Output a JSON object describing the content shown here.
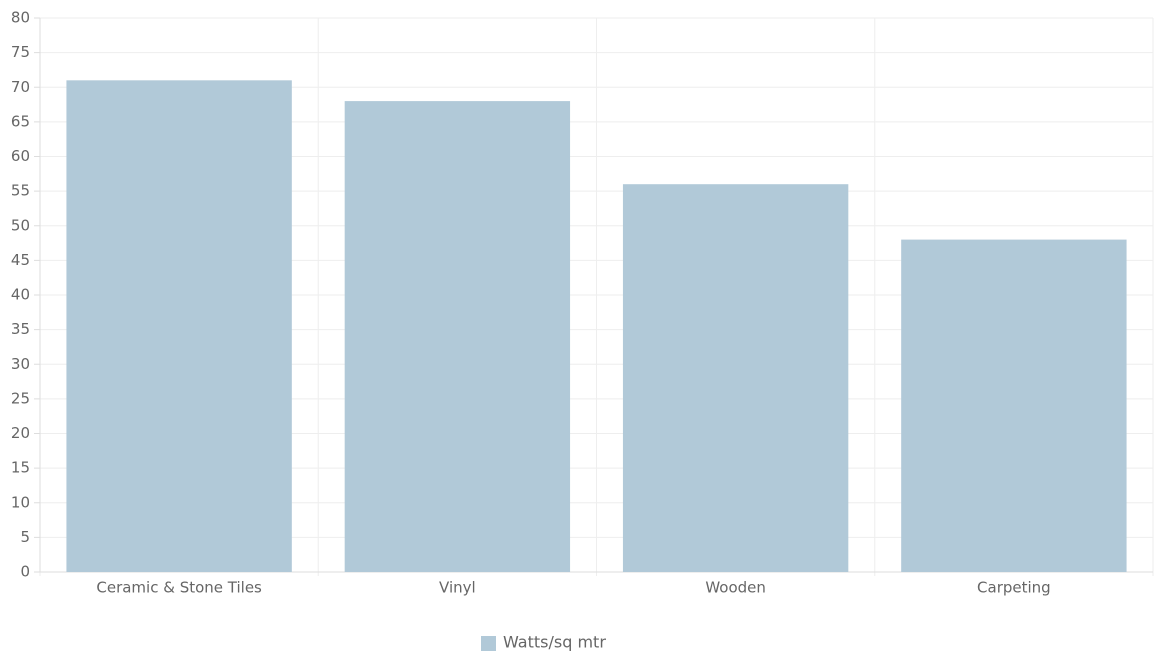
{
  "chart_data": {
    "type": "bar",
    "categories": [
      "Ceramic & Stone Tiles",
      "Vinyl",
      "Wooden",
      "Carpeting"
    ],
    "series": [
      {
        "name": "Watts/sq mtr",
        "color": "#b1c9d8",
        "values": [
          71,
          68,
          56,
          48
        ]
      }
    ],
    "ylim": [
      0,
      80
    ],
    "yticks": [
      0,
      5,
      10,
      15,
      20,
      25,
      30,
      35,
      40,
      45,
      50,
      55,
      60,
      65,
      70,
      75,
      80
    ],
    "grid": true,
    "legend": "bottom"
  }
}
